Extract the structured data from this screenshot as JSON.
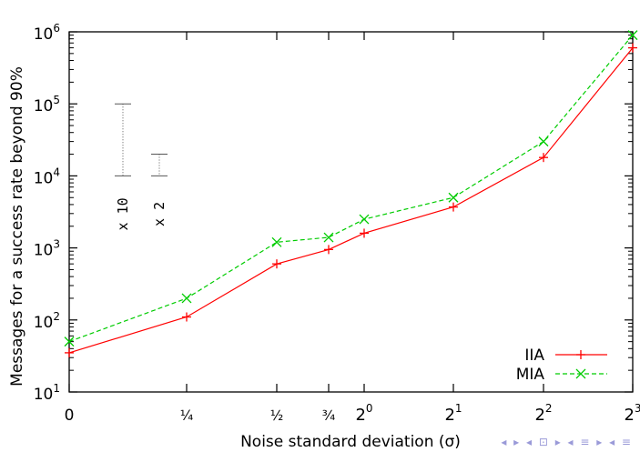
{
  "chart_data": {
    "type": "line",
    "title": "",
    "xlabel": "Noise standard deviation (σ)",
    "ylabel": "Messages for a success rate beyond 90%",
    "y_scale": "log",
    "ylim": [
      10,
      1000000
    ],
    "y_ticks": [
      {
        "value": 10,
        "base": "10",
        "exp": "1"
      },
      {
        "value": 100,
        "base": "10",
        "exp": "2"
      },
      {
        "value": 1000,
        "base": "10",
        "exp": "3"
      },
      {
        "value": 10000,
        "base": "10",
        "exp": "4"
      },
      {
        "value": 100000,
        "base": "10",
        "exp": "5"
      },
      {
        "value": 1000000,
        "base": "10",
        "exp": "6"
      }
    ],
    "x_ticks": [
      {
        "label": "0",
        "base": "",
        "exp": ""
      },
      {
        "label": "¼",
        "base": "",
        "exp": ""
      },
      {
        "label": "½",
        "base": "",
        "exp": ""
      },
      {
        "label": "¾",
        "base": "",
        "exp": ""
      },
      {
        "label": "",
        "base": "2",
        "exp": "0"
      },
      {
        "label": "",
        "base": "2",
        "exp": "1"
      },
      {
        "label": "",
        "base": "2",
        "exp": "2"
      },
      {
        "label": "",
        "base": "2",
        "exp": "3"
      }
    ],
    "x": [
      "0",
      "1/4",
      "1/2",
      "3/4",
      "2^0",
      "2^1",
      "2^2",
      "2^3"
    ],
    "series": [
      {
        "name": "IIA",
        "color": "#ff0000",
        "marker": "plus",
        "dash": "solid",
        "values": [
          35,
          110,
          600,
          950,
          1600,
          3700,
          18000,
          600000
        ]
      },
      {
        "name": "MIA",
        "color": "#00cc00",
        "marker": "cross",
        "dash": "dashed",
        "values": [
          50,
          200,
          1200,
          1400,
          2500,
          5000,
          30000,
          900000
        ]
      }
    ],
    "legend": "bottom-right",
    "grid": false,
    "annotations": [
      {
        "label": "x 10",
        "low": 10000,
        "high": 100000
      },
      {
        "label": "x 2",
        "low": 10000,
        "high": 20000
      }
    ]
  },
  "nav_icons": "◂ ▸ ◂ ⊡ ▸ ◂ ≡ ▸ ◂ ≡"
}
